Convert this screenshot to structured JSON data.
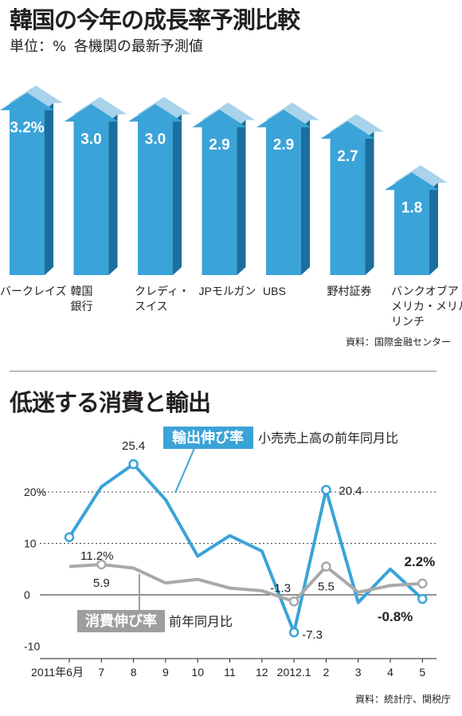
{
  "chart1": {
    "title": "韓国の今年の成長率予測比較",
    "unit_label": "単位：%",
    "subtitle": "各機関の最新予測値",
    "source": "資料：国際金融センター",
    "colors": {
      "arrow_face": "#3aa3d8",
      "arrow_side": "#1b6f9c",
      "arrow_back": "#a9d2eb"
    },
    "chart_data": {
      "type": "bar",
      "categories": [
        "バークレイズ",
        "韓国銀行",
        "クレディ・スイス",
        "JPモルガン",
        "UBS",
        "野村証券",
        "バンクオブアメリカ・メリルリンチ"
      ],
      "category_lines": [
        [
          "バークレイズ"
        ],
        [
          "韓国",
          "銀行"
        ],
        [
          "クレディ・",
          "スイス"
        ],
        [
          "JPモルガン"
        ],
        [
          "UBS"
        ],
        [
          "野村証券"
        ],
        [
          "バンクオブア",
          "メリカ・メリル",
          "リンチ"
        ]
      ],
      "values": [
        3.2,
        3.0,
        3.0,
        2.9,
        2.9,
        2.7,
        1.8
      ],
      "value_labels": [
        "3.2%",
        "3.0",
        "3.0",
        "2.9",
        "2.9",
        "2.7",
        "1.8"
      ],
      "title": "韓国の今年の成長率予測比較",
      "ylabel": "単位：%"
    }
  },
  "chart2": {
    "title": "低迷する消費と輸出",
    "source": "資料：統計庁、関税庁",
    "legend_export_tag": "輸出伸び率",
    "legend_export_text": "小売売上高の前年同月比",
    "legend_consume_tag": "消費伸び率",
    "legend_consume_text": "前年同月比",
    "colors": {
      "export": "#3aa3d8",
      "consume": "#a9a9a9",
      "tag_export": "#3aa3d8",
      "tag_consume": "#9e9e9e"
    },
    "chart_data": {
      "type": "line",
      "x": [
        "2011年6月",
        "7",
        "8",
        "9",
        "10",
        "11",
        "12",
        "2012.1",
        "2",
        "3",
        "4",
        "5"
      ],
      "ylim": [
        -10,
        25
      ],
      "yticks": [
        -10,
        0,
        10,
        20
      ],
      "ytick_labels": [
        "-10",
        "0",
        "10",
        "20%"
      ],
      "series": [
        {
          "name": "輸出伸び率",
          "values": [
            11.2,
            21,
            25.4,
            18.5,
            7.5,
            11.5,
            8.5,
            -7.3,
            20.4,
            -1.5,
            5,
            -0.8
          ]
        },
        {
          "name": "消費伸び率",
          "values": [
            5.5,
            5.9,
            5.2,
            2.3,
            3,
            1.3,
            0.8,
            -1.3,
            5.5,
            0.5,
            1.8,
            2.2
          ]
        }
      ],
      "labels": [
        {
          "series": 0,
          "index": 0,
          "text": "11.2%"
        },
        {
          "series": 0,
          "index": 2,
          "text": "25.4"
        },
        {
          "series": 0,
          "index": 7,
          "text": "-7.3"
        },
        {
          "series": 0,
          "index": 8,
          "text": "20.4"
        },
        {
          "series": 0,
          "index": 11,
          "text": "-0.8%"
        },
        {
          "series": 1,
          "index": 1,
          "text": "5.9"
        },
        {
          "series": 1,
          "index": 7,
          "text": "-1.3"
        },
        {
          "series": 1,
          "index": 8,
          "text": "5.5"
        },
        {
          "series": 1,
          "index": 11,
          "text": "2.2%"
        }
      ]
    }
  }
}
